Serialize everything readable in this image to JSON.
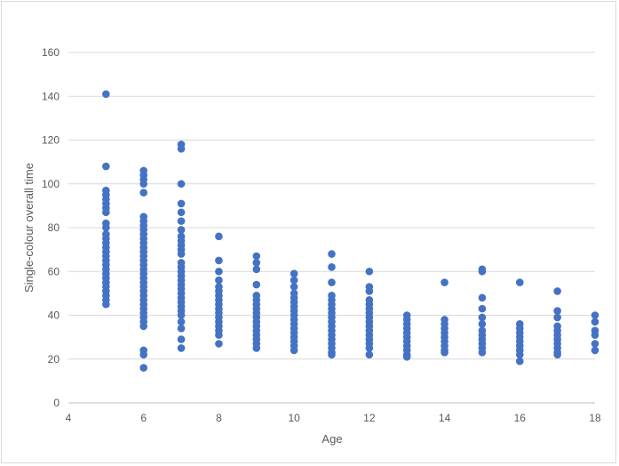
{
  "chart_data": {
    "type": "scatter",
    "title": "",
    "xlabel": "Age",
    "ylabel": "Single-colour overall time",
    "xlim": [
      4,
      18
    ],
    "ylim": [
      0,
      160
    ],
    "x_ticks": [
      4,
      6,
      8,
      10,
      12,
      14,
      16,
      18
    ],
    "y_ticks": [
      0,
      20,
      40,
      60,
      80,
      100,
      120,
      140,
      160
    ],
    "x_tick_labels": [
      "4",
      "6",
      "8",
      "10",
      "12",
      "14",
      "16",
      "18"
    ],
    "y_tick_labels": [
      "0",
      "20",
      "40",
      "60",
      "80",
      "100",
      "120",
      "140",
      "160"
    ],
    "grid": "horizontal",
    "legend": "none",
    "marker_color": "#4472c4",
    "series": [
      {
        "points": [
          [
            5,
            141
          ],
          [
            5,
            108
          ],
          [
            5,
            97
          ],
          [
            5,
            95
          ],
          [
            5,
            93
          ],
          [
            5,
            91
          ],
          [
            5,
            89
          ],
          [
            5,
            87
          ],
          [
            5,
            82
          ],
          [
            5,
            80
          ],
          [
            5,
            77
          ],
          [
            5,
            75
          ],
          [
            5,
            73
          ],
          [
            5,
            71
          ],
          [
            5,
            69
          ],
          [
            5,
            67
          ],
          [
            5,
            65
          ],
          [
            5,
            63
          ],
          [
            5,
            61
          ],
          [
            5,
            59
          ],
          [
            5,
            57
          ],
          [
            5,
            55
          ],
          [
            5,
            53
          ],
          [
            5,
            51
          ],
          [
            5,
            49
          ],
          [
            5,
            47
          ],
          [
            5,
            45
          ],
          [
            6,
            106
          ],
          [
            6,
            104
          ],
          [
            6,
            102
          ],
          [
            6,
            100
          ],
          [
            6,
            96
          ],
          [
            6,
            85
          ],
          [
            6,
            83
          ],
          [
            6,
            81
          ],
          [
            6,
            79
          ],
          [
            6,
            77
          ],
          [
            6,
            75
          ],
          [
            6,
            73
          ],
          [
            6,
            71
          ],
          [
            6,
            69
          ],
          [
            6,
            67
          ],
          [
            6,
            65
          ],
          [
            6,
            63
          ],
          [
            6,
            61
          ],
          [
            6,
            59
          ],
          [
            6,
            57
          ],
          [
            6,
            55
          ],
          [
            6,
            53
          ],
          [
            6,
            51
          ],
          [
            6,
            49
          ],
          [
            6,
            47
          ],
          [
            6,
            45
          ],
          [
            6,
            43
          ],
          [
            6,
            41
          ],
          [
            6,
            39
          ],
          [
            6,
            37
          ],
          [
            6,
            35
          ],
          [
            6,
            24
          ],
          [
            6,
            22
          ],
          [
            6,
            16
          ],
          [
            7,
            118
          ],
          [
            7,
            116
          ],
          [
            7,
            100
          ],
          [
            7,
            91
          ],
          [
            7,
            87
          ],
          [
            7,
            83
          ],
          [
            7,
            79
          ],
          [
            7,
            76
          ],
          [
            7,
            74
          ],
          [
            7,
            72
          ],
          [
            7,
            70
          ],
          [
            7,
            68
          ],
          [
            7,
            64
          ],
          [
            7,
            62
          ],
          [
            7,
            60
          ],
          [
            7,
            58
          ],
          [
            7,
            56
          ],
          [
            7,
            54
          ],
          [
            7,
            52
          ],
          [
            7,
            50
          ],
          [
            7,
            48
          ],
          [
            7,
            46
          ],
          [
            7,
            44
          ],
          [
            7,
            42
          ],
          [
            7,
            40
          ],
          [
            7,
            37
          ],
          [
            7,
            34
          ],
          [
            7,
            29
          ],
          [
            7,
            25
          ],
          [
            8,
            76
          ],
          [
            8,
            65
          ],
          [
            8,
            60
          ],
          [
            8,
            56
          ],
          [
            8,
            53
          ],
          [
            8,
            51
          ],
          [
            8,
            49
          ],
          [
            8,
            47
          ],
          [
            8,
            45
          ],
          [
            8,
            43
          ],
          [
            8,
            41
          ],
          [
            8,
            39
          ],
          [
            8,
            37
          ],
          [
            8,
            35
          ],
          [
            8,
            33
          ],
          [
            8,
            31
          ],
          [
            8,
            27
          ],
          [
            9,
            67
          ],
          [
            9,
            64
          ],
          [
            9,
            61
          ],
          [
            9,
            54
          ],
          [
            9,
            49
          ],
          [
            9,
            47
          ],
          [
            9,
            45
          ],
          [
            9,
            43
          ],
          [
            9,
            41
          ],
          [
            9,
            39
          ],
          [
            9,
            37
          ],
          [
            9,
            35
          ],
          [
            9,
            33
          ],
          [
            9,
            31
          ],
          [
            9,
            29
          ],
          [
            9,
            27
          ],
          [
            9,
            25
          ],
          [
            10,
            59
          ],
          [
            10,
            56
          ],
          [
            10,
            53
          ],
          [
            10,
            50
          ],
          [
            10,
            48
          ],
          [
            10,
            46
          ],
          [
            10,
            44
          ],
          [
            10,
            42
          ],
          [
            10,
            40
          ],
          [
            10,
            38
          ],
          [
            10,
            36
          ],
          [
            10,
            34
          ],
          [
            10,
            32
          ],
          [
            10,
            30
          ],
          [
            10,
            28
          ],
          [
            10,
            26
          ],
          [
            10,
            24
          ],
          [
            11,
            68
          ],
          [
            11,
            62
          ],
          [
            11,
            55
          ],
          [
            11,
            49
          ],
          [
            11,
            47
          ],
          [
            11,
            45
          ],
          [
            11,
            43
          ],
          [
            11,
            41
          ],
          [
            11,
            39
          ],
          [
            11,
            37
          ],
          [
            11,
            35
          ],
          [
            11,
            33
          ],
          [
            11,
            31
          ],
          [
            11,
            29
          ],
          [
            11,
            27
          ],
          [
            11,
            25
          ],
          [
            11,
            23
          ],
          [
            11,
            22
          ],
          [
            12,
            60
          ],
          [
            12,
            53
          ],
          [
            12,
            51
          ],
          [
            12,
            47
          ],
          [
            12,
            45
          ],
          [
            12,
            43
          ],
          [
            12,
            41
          ],
          [
            12,
            39
          ],
          [
            12,
            37
          ],
          [
            12,
            35
          ],
          [
            12,
            33
          ],
          [
            12,
            31
          ],
          [
            12,
            29
          ],
          [
            12,
            27
          ],
          [
            12,
            25
          ],
          [
            12,
            22
          ],
          [
            13,
            40
          ],
          [
            13,
            38
          ],
          [
            13,
            36
          ],
          [
            13,
            34
          ],
          [
            13,
            32
          ],
          [
            13,
            30
          ],
          [
            13,
            28
          ],
          [
            13,
            26
          ],
          [
            13,
            24
          ],
          [
            13,
            22
          ],
          [
            13,
            21
          ],
          [
            14,
            55
          ],
          [
            14,
            38
          ],
          [
            14,
            36
          ],
          [
            14,
            34
          ],
          [
            14,
            32
          ],
          [
            14,
            30
          ],
          [
            14,
            28
          ],
          [
            14,
            26
          ],
          [
            14,
            24
          ],
          [
            14,
            23
          ],
          [
            15,
            61
          ],
          [
            15,
            60
          ],
          [
            15,
            48
          ],
          [
            15,
            43
          ],
          [
            15,
            39
          ],
          [
            15,
            36
          ],
          [
            15,
            33
          ],
          [
            15,
            31
          ],
          [
            15,
            29
          ],
          [
            15,
            27
          ],
          [
            15,
            25
          ],
          [
            15,
            23
          ],
          [
            16,
            55
          ],
          [
            16,
            36
          ],
          [
            16,
            34
          ],
          [
            16,
            32
          ],
          [
            16,
            30
          ],
          [
            16,
            28
          ],
          [
            16,
            26
          ],
          [
            16,
            24
          ],
          [
            16,
            22
          ],
          [
            16,
            19
          ],
          [
            17,
            51
          ],
          [
            17,
            42
          ],
          [
            17,
            39
          ],
          [
            17,
            35
          ],
          [
            17,
            33
          ],
          [
            17,
            31
          ],
          [
            17,
            29
          ],
          [
            17,
            27
          ],
          [
            17,
            25
          ],
          [
            17,
            23
          ],
          [
            17,
            22
          ],
          [
            18,
            40
          ],
          [
            18,
            37
          ],
          [
            18,
            33
          ],
          [
            18,
            31
          ],
          [
            18,
            27
          ],
          [
            18,
            24
          ]
        ]
      }
    ]
  }
}
